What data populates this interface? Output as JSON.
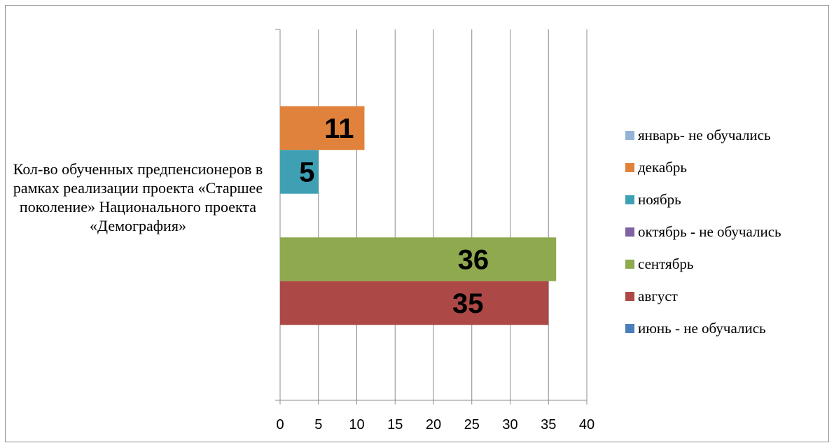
{
  "chart_data": {
    "type": "bar",
    "orientation": "horizontal",
    "category_label": "Кол-во обученных предпенсионеров в рамках реализации проекта «Старшее поколение» Национального проекта «Демография»",
    "xlim": [
      0,
      40
    ],
    "x_ticks": [
      "0",
      "5",
      "10",
      "15",
      "20",
      "25",
      "30",
      "35",
      "40"
    ],
    "grid": true,
    "legend_position": "right",
    "series": [
      {
        "name": "январь- не обучались",
        "value": 0,
        "color": "#95b3d7",
        "label": ""
      },
      {
        "name": "декабрь",
        "value": 11,
        "color": "#e0823b",
        "label": "11"
      },
      {
        "name": "ноябрь",
        "value": 5,
        "color": "#3fa0b4",
        "label": "5"
      },
      {
        "name": "октябрь - не обучались",
        "value": 0,
        "color": "#7e62a1",
        "label": ""
      },
      {
        "name": "сентябрь",
        "value": 36,
        "color": "#8ea94e",
        "label": "36"
      },
      {
        "name": "август",
        "value": 35,
        "color": "#ac4947",
        "label": "35"
      },
      {
        "name": "июнь - не обучались",
        "value": 0,
        "color": "#4a7ebb",
        "label": ""
      }
    ]
  }
}
